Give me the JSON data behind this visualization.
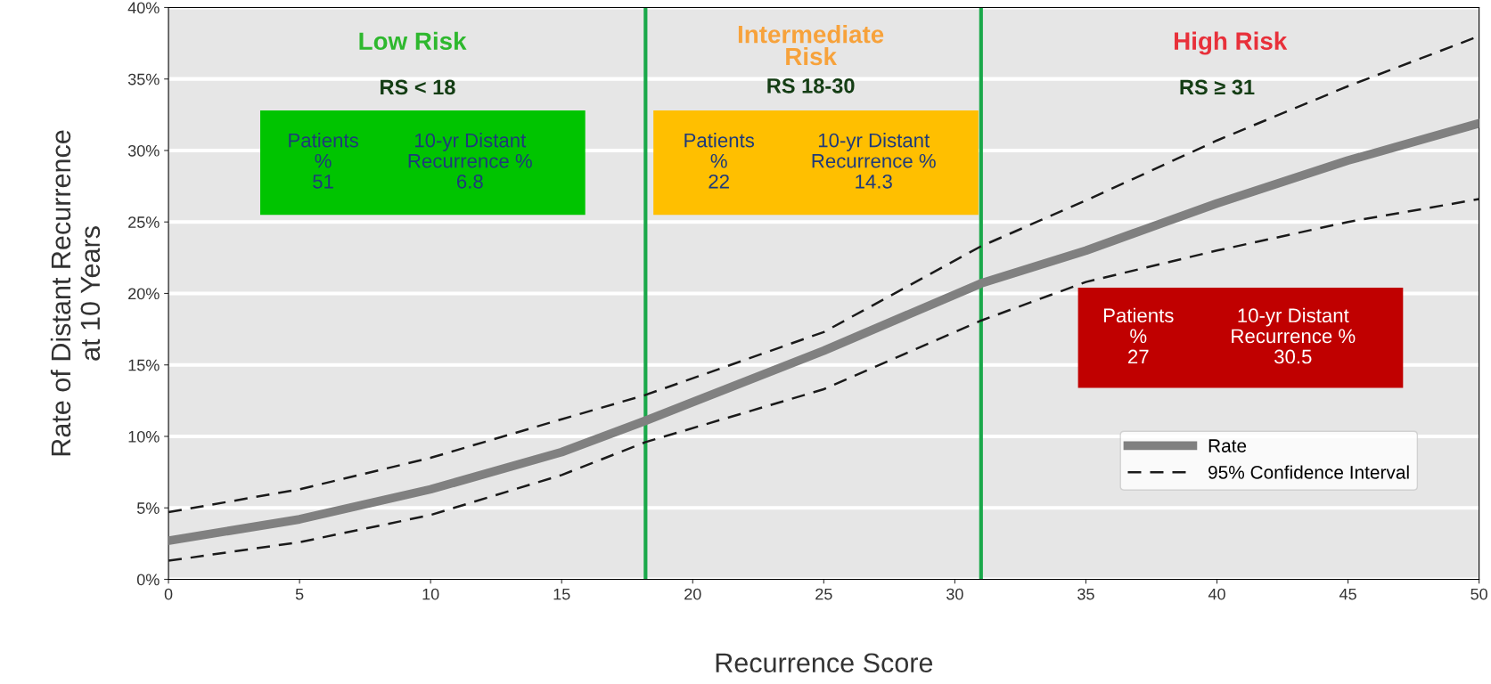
{
  "chart_data": {
    "type": "line",
    "xlabel": "Recurrence Score",
    "ylabel": "Rate of Distant Recurrence\nat 10 Years",
    "series": [
      {
        "name": "Rate",
        "color": "#808080",
        "line_style": "solid",
        "x": [
          0,
          5,
          10,
          15,
          18.2,
          25,
          31,
          35,
          40,
          45,
          50
        ],
        "values": [
          2.7,
          4.2,
          6.3,
          8.9,
          11.1,
          16,
          20.7,
          23,
          26.3,
          29.3,
          31.9
        ]
      },
      {
        "name": "95% Confidence Interval",
        "color": "#1a1a1a",
        "line_style": "dashed",
        "x": [
          0,
          5,
          10,
          15,
          18.2,
          25,
          31,
          35,
          40,
          45,
          50
        ],
        "values": [
          4.7,
          6.3,
          8.5,
          11.2,
          12.9,
          17.3,
          23.3,
          26.5,
          30.7,
          34.5,
          38
        ]
      },
      {
        "color": "#1a1a1a",
        "line_style": "dashed",
        "x": [
          0,
          5,
          10,
          15,
          18.2,
          25,
          31,
          35,
          40,
          45,
          50
        ],
        "values": [
          1.3,
          2.6,
          4.5,
          7.3,
          9.6,
          13.3,
          18.1,
          20.8,
          23,
          25,
          26.6
        ]
      }
    ],
    "xlim": [
      0,
      50
    ],
    "xticks": [
      0,
      5,
      10,
      15,
      20,
      25,
      30,
      35,
      40,
      45,
      50
    ],
    "ylim": [
      0,
      40
    ],
    "yticks": [
      {
        "value": 0,
        "label": "0%"
      },
      {
        "value": 5,
        "label": "5%"
      },
      {
        "value": 10,
        "label": "10%"
      },
      {
        "value": 15,
        "label": "15%"
      },
      {
        "value": 20,
        "label": "20%"
      },
      {
        "value": 25,
        "label": "25%"
      },
      {
        "value": 30,
        "label": "30%"
      },
      {
        "value": 35,
        "label": "35%"
      },
      {
        "value": 40,
        "label": "40%"
      }
    ],
    "ref_lines": [
      {
        "axis": "x",
        "value": 18.2,
        "color": "#1aa84a"
      },
      {
        "axis": "x",
        "value": 31,
        "color": "#1aa84a"
      }
    ],
    "grid": "y",
    "legend": "bottom right",
    "annotations": [
      "Low Risk",
      "RS < 18",
      "Intermediate\nRisk",
      "RS 18-30",
      "High Risk",
      "RS ≥ 31",
      "Patients\n%\n51",
      "10-yr Distant\nRecurrence %\n6.8",
      "Patients\n%\n22",
      "10-yr Distant\nRecurrence %\n14.3",
      "Patients\n%\n27",
      "10-yr Distant\nRecurrence %\n30.5"
    ]
  }
}
